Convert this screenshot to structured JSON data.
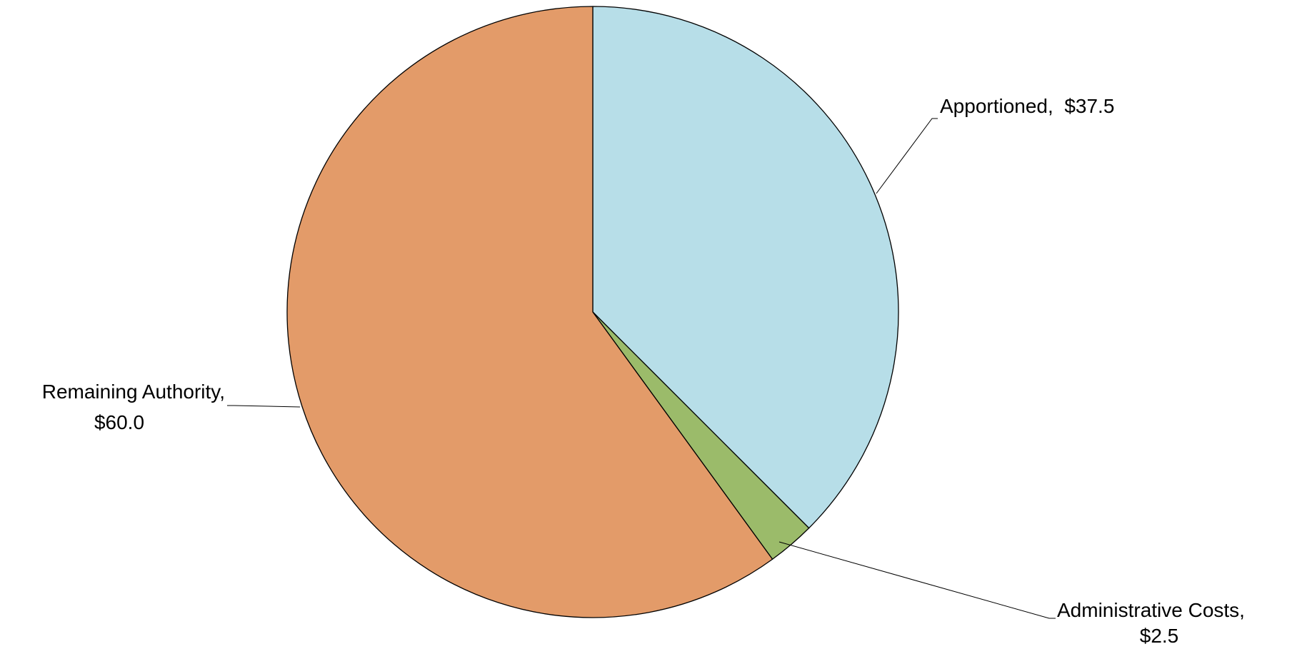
{
  "chart_data": {
    "type": "pie",
    "title": "",
    "slices": [
      {
        "category": "Apportioned",
        "value": 37.5,
        "value_label": "$37.5",
        "color": "#B7DEE8"
      },
      {
        "category": "Administrative Costs",
        "value": 2.5,
        "value_label": "$2.5",
        "color": "#9BBB6A"
      },
      {
        "category": "Remaining Authority",
        "value": 60.0,
        "value_label": "$60.0",
        "color": "#E39B69"
      }
    ],
    "start_direction": "top",
    "order": "clockwise",
    "legend": "none",
    "labels": "outside with leader lines"
  }
}
